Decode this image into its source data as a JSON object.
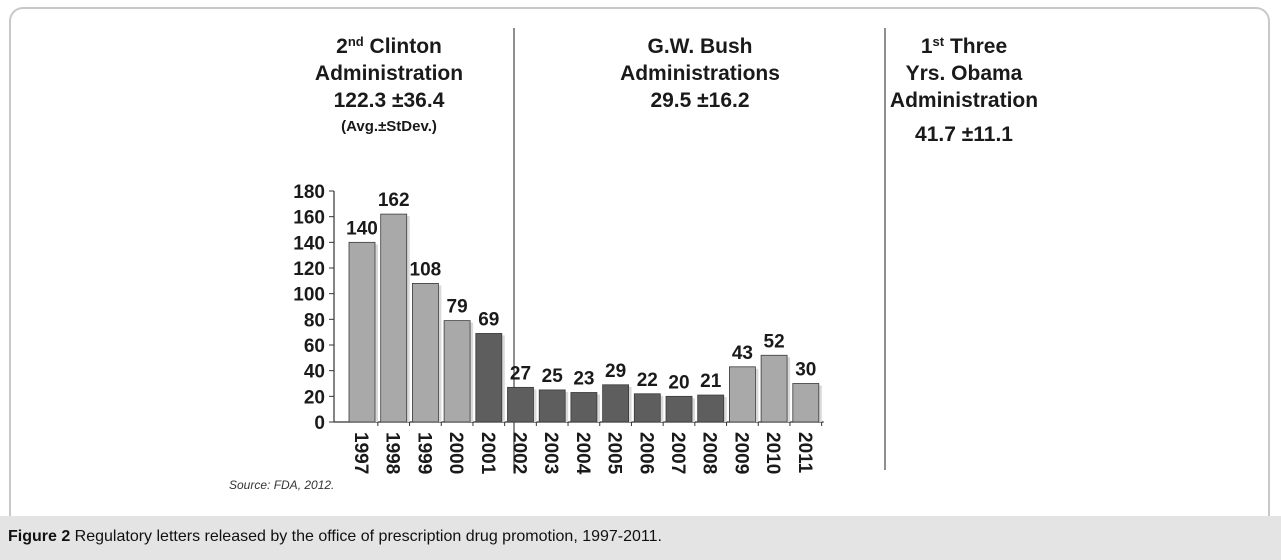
{
  "chart_data": {
    "type": "bar",
    "categories": [
      "1997",
      "1998",
      "1999",
      "2000",
      "2001",
      "2002",
      "2003",
      "2004",
      "2005",
      "2006",
      "2007",
      "2008",
      "2009",
      "2010",
      "2011"
    ],
    "values": [
      140,
      162,
      108,
      79,
      69,
      27,
      25,
      23,
      29,
      22,
      20,
      21,
      43,
      52,
      30
    ],
    "yticks": [
      "0",
      "20",
      "40",
      "60",
      "80",
      "100",
      "120",
      "140",
      "160",
      "180"
    ],
    "ylim": [
      0,
      180
    ],
    "xlabel": "",
    "ylabel": "",
    "title": "",
    "groups": [
      {
        "name_prefix": "2",
        "name_sup": "nd",
        "name_rest": " Clinton",
        "name_line2": "Administration",
        "stat": "122.3 ±36.4",
        "stat_note": "(Avg.±StDev.)",
        "color": "#a9a9a9",
        "start": 0,
        "end": 3
      },
      {
        "name_line1": "G.W. Bush",
        "name_line2": "Administrations",
        "stat": "29.5 ±16.2",
        "color": "#5e5e5e",
        "start": 4,
        "end": 11
      },
      {
        "name_prefix": "1",
        "name_sup": "st",
        "name_rest": " Three",
        "name_line2": "Yrs. Obama",
        "name_line3": "Administration",
        "stat": "41.7 ±11.1",
        "color": "#a9a9a9",
        "start": 12,
        "end": 14
      }
    ]
  },
  "source_note": "Source: FDA, 2012.",
  "caption": {
    "label": "Figure 2",
    "text": " Regulatory letters released by the office of prescription drug promotion, 1997-2011."
  }
}
